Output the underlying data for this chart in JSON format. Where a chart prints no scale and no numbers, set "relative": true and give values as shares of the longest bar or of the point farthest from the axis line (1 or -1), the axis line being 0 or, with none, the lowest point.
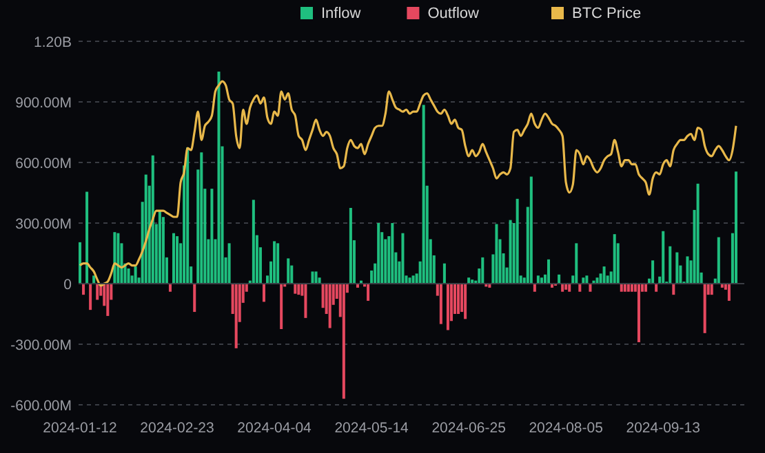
{
  "chart_data": [
    {
      "type": "bar",
      "categories": [
        "2024-01-12",
        null,
        null,
        null,
        null,
        null,
        null,
        null,
        null,
        null,
        null,
        null,
        null,
        null,
        null,
        null,
        null,
        null,
        null,
        null,
        null,
        null,
        null,
        null,
        null,
        null,
        null,
        null,
        "2024-02-23",
        null,
        null,
        null,
        null,
        null,
        null,
        null,
        null,
        null,
        null,
        null,
        null,
        null,
        null,
        null,
        null,
        null,
        null,
        null,
        null,
        null,
        null,
        null,
        null,
        null,
        null,
        null,
        "2024-04-04",
        null,
        null,
        null,
        null,
        null,
        null,
        null,
        null,
        null,
        null,
        null,
        null,
        null,
        null,
        null,
        null,
        null,
        null,
        null,
        null,
        null,
        null,
        null,
        null,
        null,
        null,
        null,
        "2024-05-14",
        null,
        null,
        null,
        null,
        null,
        null,
        null,
        null,
        null,
        null,
        null,
        null,
        null,
        null,
        null,
        null,
        null,
        null,
        null,
        null,
        null,
        null,
        null,
        null,
        null,
        null,
        null,
        "2024-06-25",
        null,
        null,
        null,
        null,
        null,
        null,
        null,
        null,
        null,
        null,
        null,
        null,
        null,
        null,
        null,
        null,
        null,
        null,
        null,
        null,
        null,
        null,
        null,
        null,
        null,
        null,
        null,
        "2024-08-05",
        null,
        null,
        null,
        null,
        null,
        null,
        null,
        null,
        null,
        null,
        null,
        null,
        null,
        null,
        null,
        null,
        null,
        null,
        null,
        null,
        null,
        null,
        null,
        null,
        null,
        null,
        null,
        "2024-09-13",
        null,
        null,
        null,
        null,
        null,
        null,
        null,
        null,
        null,
        null,
        null,
        null,
        null,
        null,
        null,
        null,
        null,
        null,
        null,
        null,
        null
      ],
      "series": [
        {
          "name": "Inflow",
          "color": "#1fbf7f",
          "values": [
            205000000.0,
            null,
            455000000.0,
            null,
            40000000.0,
            null,
            null,
            null,
            null,
            null,
            255000000.0,
            250000000.0,
            200000000.0,
            100000000.0,
            75000000.0,
            40000000.0,
            85000000.0,
            30000000.0,
            405000000.0,
            540000000.0,
            485000000.0,
            635000000.0,
            295000000.0,
            360000000.0,
            330000000.0,
            130000000.0,
            null,
            250000000.0,
            235000000.0,
            200000000.0,
            585000000.0,
            675000000.0,
            85000000.0,
            null,
            565000000.0,
            650000000.0,
            470000000.0,
            220000000.0,
            470000000.0,
            220000000.0,
            1050000000.0,
            680000000.0,
            130000000.0,
            200000000.0,
            null,
            null,
            null,
            null,
            null,
            15000000.0,
            415000000.0,
            240000000.0,
            180000000.0,
            null,
            40000000.0,
            110000000.0,
            210000000.0,
            200000000.0,
            null,
            null,
            125000000.0,
            90000000.0,
            null,
            null,
            null,
            null,
            null,
            60000000.0,
            60000000.0,
            30000000.0,
            null,
            null,
            null,
            null,
            null,
            null,
            null,
            null,
            375000000.0,
            215000000.0,
            null,
            15000000.0,
            null,
            null,
            65000000.0,
            100000000.0,
            300000000.0,
            255000000.0,
            220000000.0,
            235000000.0,
            300000000.0,
            155000000.0,
            110000000.0,
            250000000.0,
            40000000.0,
            30000000.0,
            40000000.0,
            50000000.0,
            110000000.0,
            885000000.0,
            485000000.0,
            220000000.0,
            140000000.0,
            null,
            null,
            100000000.0,
            null,
            null,
            null,
            null,
            null,
            null,
            30000000.0,
            20000000.0,
            15000000.0,
            75000000.0,
            130000000.0,
            null,
            null,
            145000000.0,
            295000000.0,
            220000000.0,
            150000000.0,
            80000000.0,
            315000000.0,
            300000000.0,
            420000000.0,
            40000000.0,
            30000000.0,
            380000000.0,
            530000000.0,
            null,
            40000000.0,
            30000000.0,
            45000000.0,
            120000000.0,
            null,
            null,
            45000000.0,
            null,
            null,
            null,
            40000000.0,
            200000000.0,
            null,
            30000000.0,
            40000000.0,
            null,
            15000000.0,
            30000000.0,
            50000000.0,
            85000000.0,
            40000000.0,
            60000000.0,
            245000000.0,
            200000000.0,
            null,
            null,
            null,
            null,
            null,
            null,
            null,
            null,
            25000000.0,
            115000000.0,
            null,
            35000000.0,
            260000000.0,
            10000000.0,
            185000000.0,
            null,
            155000000.0,
            90000000.0,
            10000000.0,
            135000000.0,
            115000000.0,
            365000000.0,
            495000000.0,
            55000000.0,
            null,
            null,
            null,
            25000000.0,
            230000000.0,
            null,
            null,
            null,
            250000000.0,
            555000000.0
          ]
        },
        {
          "name": "Outflow",
          "color": "#e5485f",
          "values": [
            null,
            -55000000.0,
            null,
            -130000000.0,
            null,
            -80000000.0,
            -60000000.0,
            -110000000.0,
            -160000000.0,
            -80000000.0,
            null,
            null,
            null,
            null,
            null,
            null,
            null,
            null,
            null,
            null,
            null,
            null,
            null,
            null,
            null,
            null,
            -40000000.0,
            null,
            null,
            null,
            null,
            null,
            null,
            -140000000.0,
            null,
            null,
            null,
            null,
            null,
            null,
            null,
            null,
            null,
            null,
            -150000000.0,
            -320000000.0,
            -190000000.0,
            -95000000.0,
            -40000000.0,
            null,
            null,
            null,
            null,
            -90000000.0,
            null,
            null,
            null,
            null,
            -225000000.0,
            -15000000.0,
            null,
            null,
            -50000000.0,
            -55000000.0,
            -60000000.0,
            -170000000.0,
            null,
            null,
            null,
            null,
            -120000000.0,
            -150000000.0,
            -220000000.0,
            -105000000.0,
            -75000000.0,
            -165000000.0,
            -570000000.0,
            -45000000.0,
            null,
            null,
            -20000000.0,
            null,
            -15000000.0,
            -85000000.0,
            null,
            null,
            null,
            null,
            null,
            null,
            null,
            null,
            null,
            null,
            null,
            null,
            null,
            null,
            null,
            null,
            null,
            null,
            null,
            -60000000.0,
            -200000000.0,
            null,
            -230000000.0,
            -185000000.0,
            -150000000.0,
            -150000000.0,
            -140000000.0,
            -175000000.0,
            null,
            null,
            null,
            null,
            null,
            -15000000.0,
            -20000000.0,
            null,
            null,
            null,
            null,
            null,
            null,
            null,
            null,
            null,
            null,
            null,
            null,
            -40000000.0,
            null,
            null,
            null,
            null,
            -20000000.0,
            -10000000.0,
            null,
            -40000000.0,
            -30000000.0,
            -40000000.0,
            null,
            null,
            -40000000.0,
            null,
            null,
            -40000000.0,
            null,
            null,
            null,
            null,
            null,
            null,
            null,
            null,
            -40000000.0,
            -40000000.0,
            -40000000.0,
            -40000000.0,
            -40000000.0,
            -290000000.0,
            -40000000.0,
            -40000000.0,
            null,
            null,
            -40000000.0,
            null,
            null,
            null,
            null,
            -55000000.0,
            null,
            null,
            null,
            null,
            null,
            null,
            null,
            null,
            -245000000.0,
            -55000000.0,
            -55000000.0,
            null,
            null,
            -20000000.0,
            -30000000.0,
            -85000000.0,
            null,
            null
          ]
        }
      ],
      "ylim": [
        -600000000.0,
        1200000000.0
      ],
      "yticks": [
        {
          "value": -600000000.0,
          "label": "-600.00M"
        },
        {
          "value": -300000000.0,
          "label": "-300.00M"
        },
        0,
        {
          "value": 300000000.0,
          "label": "300.00M"
        },
        {
          "value": 600000000.0,
          "label": "600.00M"
        },
        {
          "value": 900000000.0,
          "label": "900.00M"
        },
        {
          "value": 1200000000.0,
          "label": "1.20B"
        }
      ],
      "grid": "y",
      "legend": "top"
    },
    {
      "type": "line",
      "relative": true,
      "legend": "top",
      "categories": [
        null,
        null,
        null,
        null,
        null,
        null,
        null,
        null,
        null,
        null,
        null,
        null,
        null,
        null,
        null,
        null,
        null,
        null,
        null,
        null,
        null,
        null,
        null,
        null,
        null,
        null,
        null,
        null,
        null,
        null,
        null,
        null,
        null,
        null,
        null,
        null,
        null,
        null,
        null,
        null,
        null,
        null,
        null,
        null,
        null,
        null,
        null,
        null,
        null,
        null,
        null,
        null,
        null,
        null,
        null,
        null,
        null,
        null,
        null,
        null,
        null,
        null,
        null,
        null,
        null,
        null,
        null,
        null,
        null,
        null,
        null,
        null,
        null,
        null,
        null,
        null,
        null,
        null,
        null,
        null,
        null,
        null,
        null,
        null,
        null,
        null,
        null,
        null,
        null,
        null,
        null,
        null,
        null,
        null,
        null,
        null,
        null,
        null,
        null,
        null,
        null,
        null,
        null,
        null,
        null,
        null,
        null,
        null,
        null,
        null,
        null,
        null,
        null,
        null,
        null,
        null,
        null,
        null,
        null,
        null,
        null,
        null,
        null,
        null,
        null,
        null,
        null,
        null,
        null,
        null,
        null,
        null,
        null,
        null,
        null,
        null,
        null,
        null,
        null,
        null,
        null,
        null,
        null,
        null,
        null,
        null,
        null,
        null,
        null,
        null,
        null,
        null,
        null,
        null,
        null,
        null,
        null,
        null,
        null,
        null,
        null,
        null,
        null,
        null,
        null,
        null,
        null,
        null,
        null,
        null,
        null,
        null,
        null,
        null,
        null,
        null,
        null,
        null,
        null,
        null,
        null,
        null,
        null,
        null,
        null,
        null,
        null,
        null,
        null,
        null
      ],
      "series": [
        {
          "name": "BTC Price",
          "color": "#e8b84a",
          "values": [
            0.09,
            0.1,
            0.1,
            0.08,
            0.06,
            0.02,
            -0.01,
            0,
            0.01,
            0.05,
            0.1,
            0.09,
            0.08,
            0.09,
            0.1,
            0.09,
            0.09,
            0.12,
            0.16,
            0.21,
            0.27,
            0.32,
            0.36,
            0.36,
            0.36,
            0.35,
            0.34,
            0.33,
            0.33,
            0.5,
            0.55,
            0.67,
            0.66,
            0.75,
            0.85,
            0.71,
            0.78,
            0.8,
            0.83,
            0.95,
            0.98,
            1,
            0.98,
            0.91,
            0.89,
            0.73,
            0.67,
            0.86,
            0.79,
            0.87,
            0.91,
            0.93,
            0.89,
            0.92,
            0.82,
            0.79,
            0.85,
            0.83,
            0.95,
            0.91,
            0.94,
            0.86,
            0.83,
            0.73,
            0.71,
            0.66,
            0.71,
            0.76,
            0.81,
            0.76,
            0.73,
            0.75,
            0.73,
            0.67,
            0.64,
            0.57,
            0.58,
            0.67,
            0.71,
            0.68,
            0.67,
            0.69,
            0.64,
            0.69,
            0.73,
            0.77,
            0.78,
            0.78,
            0.84,
            0.95,
            0.91,
            0.87,
            0.86,
            0.85,
            0.86,
            0.84,
            0.85,
            0.85,
            0.89,
            0.93,
            0.94,
            0.91,
            0.88,
            0.85,
            0.84,
            0.86,
            0.83,
            0.79,
            0.81,
            0.77,
            0.76,
            0.68,
            0.63,
            0.66,
            0.63,
            0.65,
            0.69,
            0.65,
            0.61,
            0.57,
            0.52,
            0.54,
            0.55,
            0.54,
            0.57,
            0.75,
            0.76,
            0.73,
            0.76,
            0.79,
            0.84,
            0.79,
            0.77,
            0.81,
            0.84,
            0.82,
            0.79,
            0.78,
            0.76,
            0.73,
            0.5,
            0.45,
            0.49,
            0.66,
            0.64,
            0.59,
            0.63,
            0.61,
            0.57,
            0.55,
            0.57,
            0.61,
            0.63,
            0.64,
            0.71,
            0.65,
            0.58,
            0.61,
            0.61,
            0.59,
            0.59,
            0.54,
            0.52,
            0.5,
            0.44,
            0.52,
            0.55,
            0.54,
            0.59,
            0.61,
            0.58,
            0.66,
            0.69,
            0.71,
            0.71,
            0.73,
            0.74,
            0.71,
            0.77,
            0.76,
            0.68,
            0.64,
            0.63,
            0.66,
            0.68,
            0.66,
            0.63,
            0.61,
            0.66,
            0.78
          ]
        }
      ]
    }
  ]
}
